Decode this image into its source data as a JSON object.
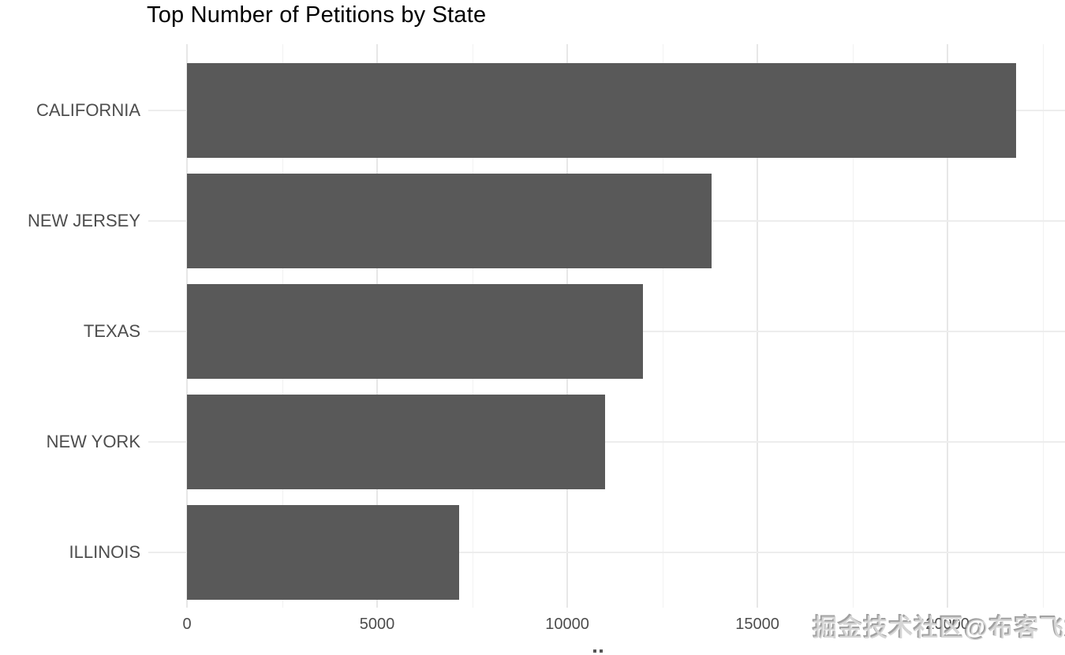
{
  "title": "Top Number of Petitions by State",
  "watermark": "掘金技术社区@布客飞龙",
  "colors": {
    "background": "#ffffff",
    "bar": "#595959",
    "title_text": "#000000",
    "axis_text": "#4d4d4d",
    "grid_major": "#e7e7e7",
    "grid_minor": "#f2f2f2"
  },
  "chart_data": {
    "type": "bar",
    "orientation": "horizontal",
    "title": "Top Number of Petitions by State",
    "categories": [
      "CALIFORNIA",
      "NEW JERSEY",
      "TEXAS",
      "NEW YORK",
      "ILLINOIS"
    ],
    "values": [
      21800,
      13800,
      12000,
      11000,
      7150
    ],
    "xlabel": "",
    "ylabel": "",
    "x_ticks": [
      0,
      5000,
      10000,
      15000,
      20000
    ],
    "x_minor_ticks": [
      2500,
      7500,
      12500,
      17500,
      22500
    ],
    "xlim": [
      0,
      23090
    ],
    "grid": true,
    "legend": false,
    "bar_color": "#595959",
    "notes": "values estimated from gridlines"
  }
}
